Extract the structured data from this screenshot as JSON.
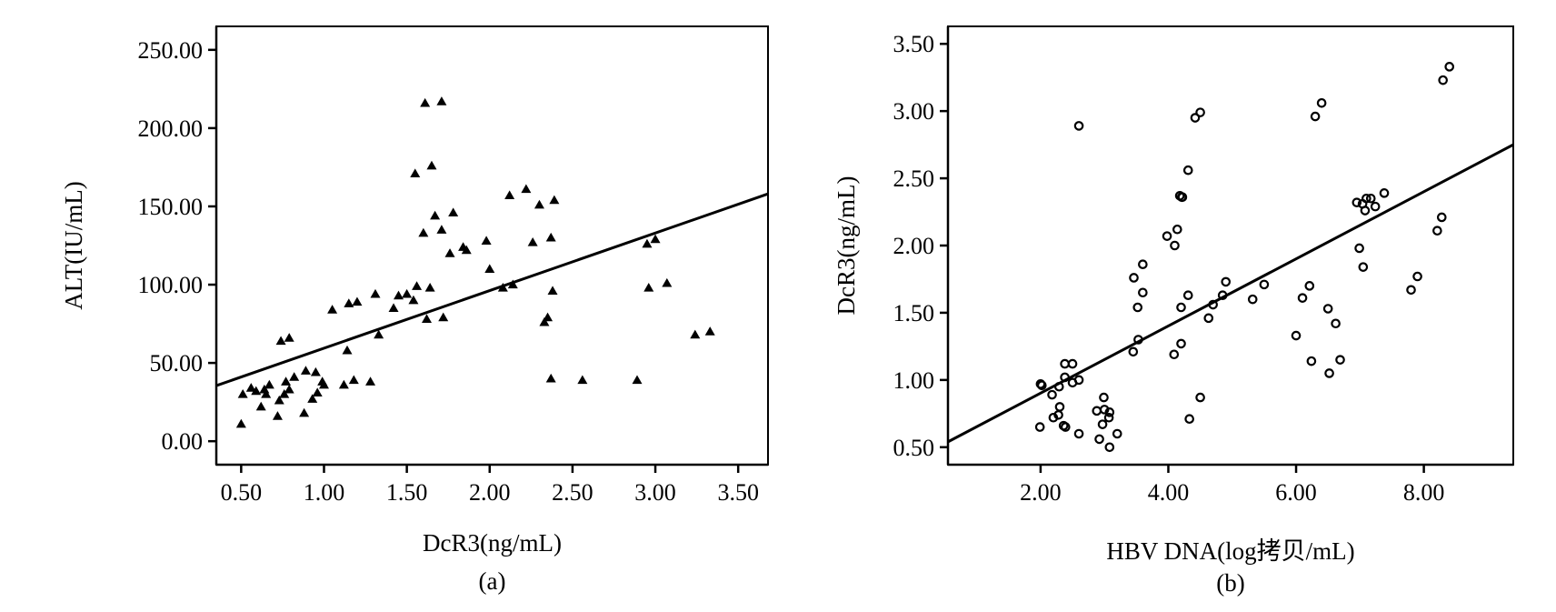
{
  "chart_data": [
    {
      "panel": "(a)",
      "type": "scatter",
      "xlabel": "DcR3(ng/mL)",
      "ylabel": "ALT(IU/mL)",
      "xlim": [
        0.35,
        3.68
      ],
      "ylim": [
        -15,
        265
      ],
      "xticks": [
        0.5,
        1.0,
        1.5,
        2.0,
        2.5,
        3.0,
        3.5
      ],
      "xtick_labels": [
        "0.50",
        "1.00",
        "1.50",
        "2.00",
        "2.50",
        "3.00",
        "3.50"
      ],
      "yticks": [
        0,
        50,
        100,
        150,
        200,
        250
      ],
      "ytick_labels": [
        "0.00",
        "50.00",
        "100.00",
        "150.00",
        "200.00",
        "250.00"
      ],
      "marker": "filled-triangle",
      "grid": false,
      "fit_line": [
        [
          0.35,
          35.5
        ],
        [
          3.68,
          158.0
        ]
      ],
      "points": [
        [
          0.5,
          11
        ],
        [
          0.51,
          30
        ],
        [
          0.56,
          34
        ],
        [
          0.59,
          32
        ],
        [
          0.62,
          22
        ],
        [
          0.64,
          33
        ],
        [
          0.65,
          30
        ],
        [
          0.67,
          36
        ],
        [
          0.72,
          16
        ],
        [
          0.73,
          26
        ],
        [
          0.74,
          64
        ],
        [
          0.76,
          30
        ],
        [
          0.77,
          38
        ],
        [
          0.79,
          33
        ],
        [
          0.79,
          66
        ],
        [
          0.82,
          41
        ],
        [
          0.88,
          18
        ],
        [
          0.89,
          45
        ],
        [
          0.93,
          27
        ],
        [
          0.95,
          44
        ],
        [
          0.96,
          31
        ],
        [
          0.99,
          38
        ],
        [
          1.0,
          36
        ],
        [
          1.05,
          84
        ],
        [
          1.12,
          36
        ],
        [
          1.14,
          58
        ],
        [
          1.15,
          88
        ],
        [
          1.18,
          39
        ],
        [
          1.2,
          89
        ],
        [
          1.28,
          38
        ],
        [
          1.31,
          94
        ],
        [
          1.33,
          68
        ],
        [
          1.42,
          85
        ],
        [
          1.45,
          93
        ],
        [
          1.5,
          94
        ],
        [
          1.54,
          90
        ],
        [
          1.55,
          171
        ],
        [
          1.56,
          99
        ],
        [
          1.6,
          133
        ],
        [
          1.61,
          216
        ],
        [
          1.62,
          78
        ],
        [
          1.64,
          98
        ],
        [
          1.65,
          176
        ],
        [
          1.67,
          144
        ],
        [
          1.71,
          217
        ],
        [
          1.71,
          135
        ],
        [
          1.72,
          79
        ],
        [
          1.76,
          120
        ],
        [
          1.78,
          146
        ],
        [
          1.84,
          124
        ],
        [
          1.86,
          122
        ],
        [
          1.98,
          128
        ],
        [
          2.0,
          110
        ],
        [
          2.08,
          98
        ],
        [
          2.12,
          157
        ],
        [
          2.14,
          100
        ],
        [
          2.22,
          161
        ],
        [
          2.26,
          127
        ],
        [
          2.3,
          151
        ],
        [
          2.33,
          76
        ],
        [
          2.35,
          79
        ],
        [
          2.37,
          130
        ],
        [
          2.37,
          40
        ],
        [
          2.38,
          96
        ],
        [
          2.39,
          154
        ],
        [
          2.56,
          39
        ],
        [
          2.89,
          39
        ],
        [
          2.95,
          126
        ],
        [
          2.96,
          98
        ],
        [
          3.0,
          129
        ],
        [
          3.07,
          101
        ],
        [
          3.24,
          68
        ],
        [
          3.33,
          70
        ]
      ]
    },
    {
      "panel": "(b)",
      "type": "scatter",
      "xlabel": "HBV DNA(log拷贝/mL)",
      "ylabel": "DcR3(ng/mL)",
      "xlim": [
        0.55,
        9.4
      ],
      "ylim": [
        0.37,
        3.63
      ],
      "xticks": [
        2.0,
        4.0,
        6.0,
        8.0
      ],
      "xtick_labels": [
        "2.00",
        "4.00",
        "6.00",
        "8.00"
      ],
      "yticks": [
        0.5,
        1.0,
        1.5,
        2.0,
        2.5,
        3.0,
        3.5
      ],
      "ytick_labels": [
        "0.50",
        "1.00",
        "1.50",
        "2.00",
        "2.50",
        "3.00",
        "3.50"
      ],
      "marker": "open-circle",
      "grid": false,
      "fit_line": [
        [
          0.55,
          0.54
        ],
        [
          9.4,
          2.75
        ]
      ],
      "points": [
        [
          1.99,
          0.65
        ],
        [
          2.0,
          0.97
        ],
        [
          2.02,
          0.96
        ],
        [
          2.18,
          0.89
        ],
        [
          2.2,
          0.72
        ],
        [
          2.28,
          0.74
        ],
        [
          2.29,
          0.95
        ],
        [
          2.3,
          0.8
        ],
        [
          2.36,
          0.66
        ],
        [
          2.38,
          1.12
        ],
        [
          2.38,
          1.02
        ],
        [
          2.39,
          0.65
        ],
        [
          2.5,
          1.12
        ],
        [
          2.5,
          0.98
        ],
        [
          2.6,
          1.0
        ],
        [
          2.6,
          0.6
        ],
        [
          2.6,
          2.89
        ],
        [
          2.88,
          0.77
        ],
        [
          2.92,
          0.56
        ],
        [
          2.97,
          0.67
        ],
        [
          2.99,
          0.87
        ],
        [
          3.0,
          0.78
        ],
        [
          3.07,
          0.72
        ],
        [
          3.08,
          0.76
        ],
        [
          3.08,
          0.5
        ],
        [
          3.2,
          0.6
        ],
        [
          3.45,
          1.21
        ],
        [
          3.46,
          1.76
        ],
        [
          3.52,
          1.54
        ],
        [
          3.53,
          1.3
        ],
        [
          3.6,
          1.65
        ],
        [
          3.6,
          1.86
        ],
        [
          3.98,
          2.07
        ],
        [
          4.09,
          1.19
        ],
        [
          4.1,
          2.0
        ],
        [
          4.14,
          2.12
        ],
        [
          4.18,
          2.37
        ],
        [
          4.2,
          1.54
        ],
        [
          4.2,
          1.27
        ],
        [
          4.21,
          2.36
        ],
        [
          4.22,
          2.36
        ],
        [
          4.31,
          2.56
        ],
        [
          4.31,
          1.63
        ],
        [
          4.33,
          0.71
        ],
        [
          4.42,
          2.95
        ],
        [
          4.5,
          2.99
        ],
        [
          4.5,
          0.87
        ],
        [
          4.63,
          1.46
        ],
        [
          4.7,
          1.56
        ],
        [
          4.85,
          1.63
        ],
        [
          4.9,
          1.73
        ],
        [
          5.32,
          1.6
        ],
        [
          5.5,
          1.71
        ],
        [
          6.0,
          1.33
        ],
        [
          6.1,
          1.61
        ],
        [
          6.21,
          1.7
        ],
        [
          6.24,
          1.14
        ],
        [
          6.3,
          2.96
        ],
        [
          6.4,
          3.06
        ],
        [
          6.5,
          1.53
        ],
        [
          6.52,
          1.05
        ],
        [
          6.62,
          1.42
        ],
        [
          6.69,
          1.15
        ],
        [
          6.95,
          2.32
        ],
        [
          6.99,
          1.98
        ],
        [
          7.04,
          2.31
        ],
        [
          7.05,
          1.84
        ],
        [
          7.08,
          2.26
        ],
        [
          7.1,
          2.35
        ],
        [
          7.17,
          2.35
        ],
        [
          7.24,
          2.29
        ],
        [
          7.38,
          2.39
        ],
        [
          7.8,
          1.67
        ],
        [
          7.9,
          1.77
        ],
        [
          8.21,
          2.11
        ],
        [
          8.28,
          2.21
        ],
        [
          8.3,
          3.23
        ],
        [
          8.4,
          3.33
        ]
      ]
    }
  ]
}
